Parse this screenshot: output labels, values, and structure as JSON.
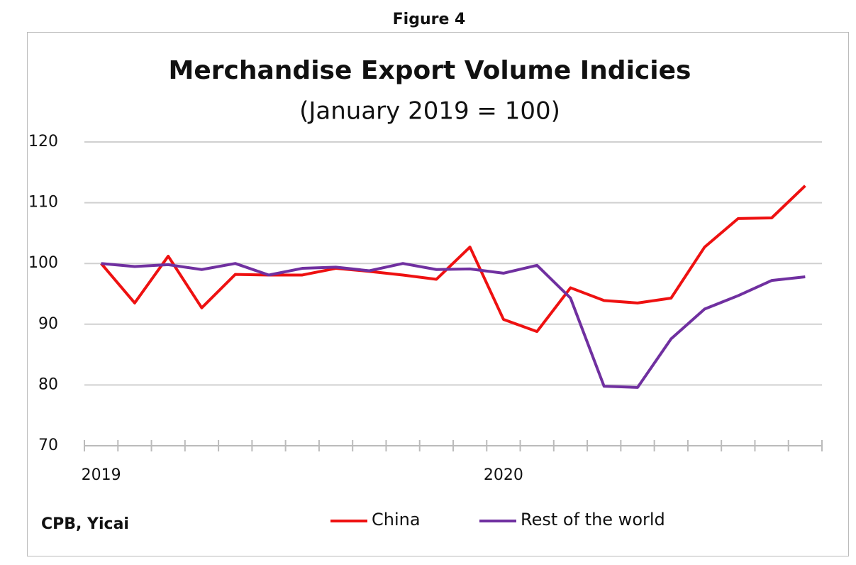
{
  "figure_label": "Figure 4",
  "source": "CPB, Yicai",
  "chart_data": {
    "type": "line",
    "title": "Merchandise Export Volume Indicies",
    "subtitle": "(January 2019 = 100)",
    "categories": [
      "2019",
      null,
      null,
      null,
      null,
      null,
      null,
      null,
      null,
      null,
      null,
      null,
      "2020",
      null,
      null,
      null,
      null,
      null,
      null,
      null,
      null,
      null
    ],
    "series": [
      {
        "name": "China",
        "color": "#ee1111",
        "values": [
          100,
          93.5,
          101.2,
          92.7,
          98.2,
          98.1,
          98.1,
          99.2,
          98.7,
          98.1,
          97.4,
          102.7,
          90.8,
          88.8,
          96,
          93.9,
          93.5,
          94.3,
          102.7,
          107.4,
          107.5,
          112.8
        ]
      },
      {
        "name": "Rest of the world",
        "color": "#7030a0",
        "values": [
          100,
          99.5,
          99.8,
          99,
          100,
          98.1,
          99.2,
          99.4,
          98.8,
          100,
          99,
          99.1,
          98.4,
          99.7,
          94.3,
          79.8,
          79.6,
          87.6,
          92.5,
          94.7,
          97.2,
          97.8
        ]
      }
    ],
    "ylim": [
      70,
      120
    ],
    "yticks": [
      70,
      80,
      90,
      100,
      110,
      120
    ],
    "grid": true,
    "legend": "bottom"
  }
}
